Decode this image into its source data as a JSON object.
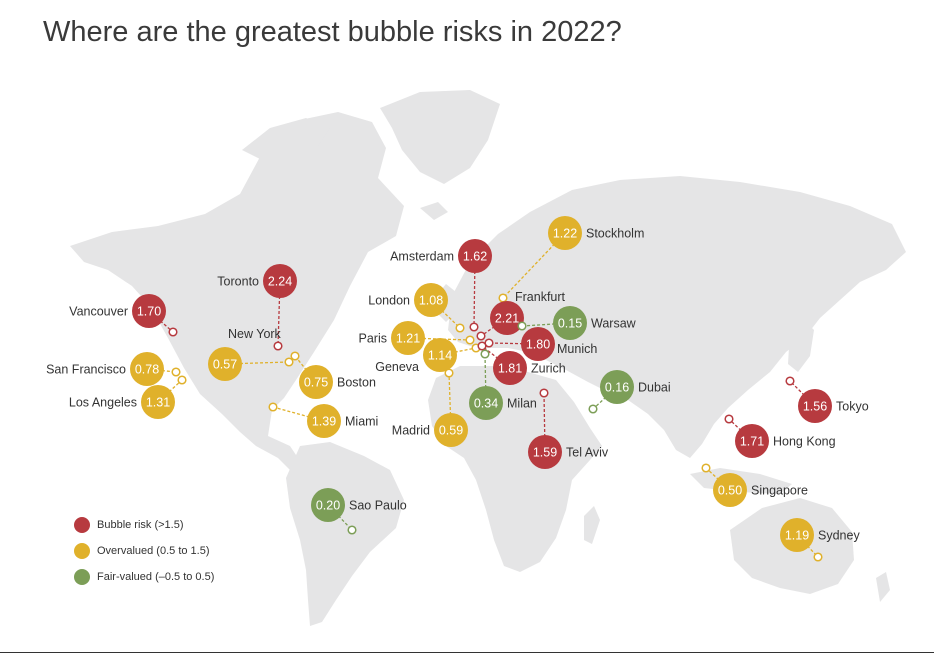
{
  "title": "Where are the greatest bubble risks in 2022?",
  "colors": {
    "bubble": "#b73a3f",
    "overvalued": "#e0b12b",
    "fair": "#7c9e57",
    "land": "#e5e5e6"
  },
  "legend": [
    {
      "category": "bubble",
      "label": "Bubble risk (>1.5)"
    },
    {
      "category": "overvalued",
      "label": "Overvalued (0.5 to 1.5)"
    },
    {
      "category": "fair",
      "label": "Fair-valued (–0.5 to 0.5)"
    }
  ],
  "cities": [
    {
      "id": "toronto",
      "name": "Toronto",
      "value": "2.24",
      "category": "bubble"
    },
    {
      "id": "vancouver",
      "name": "Vancouver",
      "value": "1.70",
      "category": "bubble"
    },
    {
      "id": "new-york",
      "name": "New York",
      "value": "0.57",
      "category": "overvalued"
    },
    {
      "id": "boston",
      "name": "Boston",
      "value": "0.75",
      "category": "overvalued"
    },
    {
      "id": "san-francisco",
      "name": "San Francisco",
      "value": "0.78",
      "category": "overvalued"
    },
    {
      "id": "los-angeles",
      "name": "Los Angeles",
      "value": "1.31",
      "category": "overvalued"
    },
    {
      "id": "miami",
      "name": "Miami",
      "value": "1.39",
      "category": "overvalued"
    },
    {
      "id": "sao-paulo",
      "name": "Sao Paulo",
      "value": "0.20",
      "category": "fair"
    },
    {
      "id": "amsterdam",
      "name": "Amsterdam",
      "value": "1.62",
      "category": "bubble"
    },
    {
      "id": "stockholm",
      "name": "Stockholm",
      "value": "1.22",
      "category": "overvalued"
    },
    {
      "id": "london",
      "name": "London",
      "value": "1.08",
      "category": "overvalued"
    },
    {
      "id": "frankfurt",
      "name": "Frankfurt",
      "value": "2.21",
      "category": "bubble"
    },
    {
      "id": "warsaw",
      "name": "Warsaw",
      "value": "0.15",
      "category": "fair"
    },
    {
      "id": "paris",
      "name": "Paris",
      "value": "1.21",
      "category": "overvalued"
    },
    {
      "id": "munich",
      "name": "Munich",
      "value": "1.80",
      "category": "bubble"
    },
    {
      "id": "geneva",
      "name": "Geneva",
      "value": "1.14",
      "category": "overvalued"
    },
    {
      "id": "zurich",
      "name": "Zurich",
      "value": "1.81",
      "category": "bubble"
    },
    {
      "id": "milan",
      "name": "Milan",
      "value": "0.34",
      "category": "fair"
    },
    {
      "id": "madrid",
      "name": "Madrid",
      "value": "0.59",
      "category": "overvalued"
    },
    {
      "id": "tel-aviv",
      "name": "Tel Aviv",
      "value": "1.59",
      "category": "bubble"
    },
    {
      "id": "dubai",
      "name": "Dubai",
      "value": "0.16",
      "category": "fair"
    },
    {
      "id": "tokyo",
      "name": "Tokyo",
      "value": "1.56",
      "category": "bubble"
    },
    {
      "id": "hong-kong",
      "name": "Hong Kong",
      "value": "1.71",
      "category": "bubble"
    },
    {
      "id": "singapore",
      "name": "Singapore",
      "value": "0.50",
      "category": "overvalued"
    },
    {
      "id": "sydney",
      "name": "Sydney",
      "value": "1.19",
      "category": "overvalued"
    }
  ]
}
